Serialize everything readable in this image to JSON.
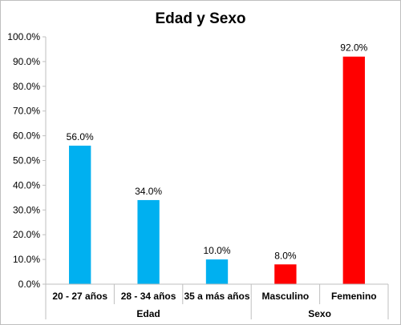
{
  "chart_data": {
    "type": "bar",
    "title": "Edad y Sexo",
    "categories": [
      "20 - 27 años",
      "28 - 34 años",
      "35 a más años",
      "Masculino",
      "Femenino"
    ],
    "values": [
      56.0,
      34.0,
      10.0,
      8.0,
      92.0
    ],
    "value_labels": [
      "56.0%",
      "34.0%",
      "10.0%",
      "8.0%",
      "92.0%"
    ],
    "bar_colors": [
      "#00b0f0",
      "#00b0f0",
      "#00b0f0",
      "#ff0000",
      "#ff0000"
    ],
    "groups": [
      {
        "label": "Edad",
        "span": [
          0,
          2
        ]
      },
      {
        "label": "Sexo",
        "span": [
          3,
          4
        ]
      }
    ],
    "ylim": [
      0,
      100
    ],
    "yticks": [
      0,
      10,
      20,
      30,
      40,
      50,
      60,
      70,
      80,
      90,
      100
    ],
    "ytick_labels": [
      "0.0%",
      "10.0%",
      "20.0%",
      "30.0%",
      "40.0%",
      "50.0%",
      "60.0%",
      "70.0%",
      "80.0%",
      "90.0%",
      "100.0%"
    ],
    "grid": false,
    "legend": "none"
  }
}
